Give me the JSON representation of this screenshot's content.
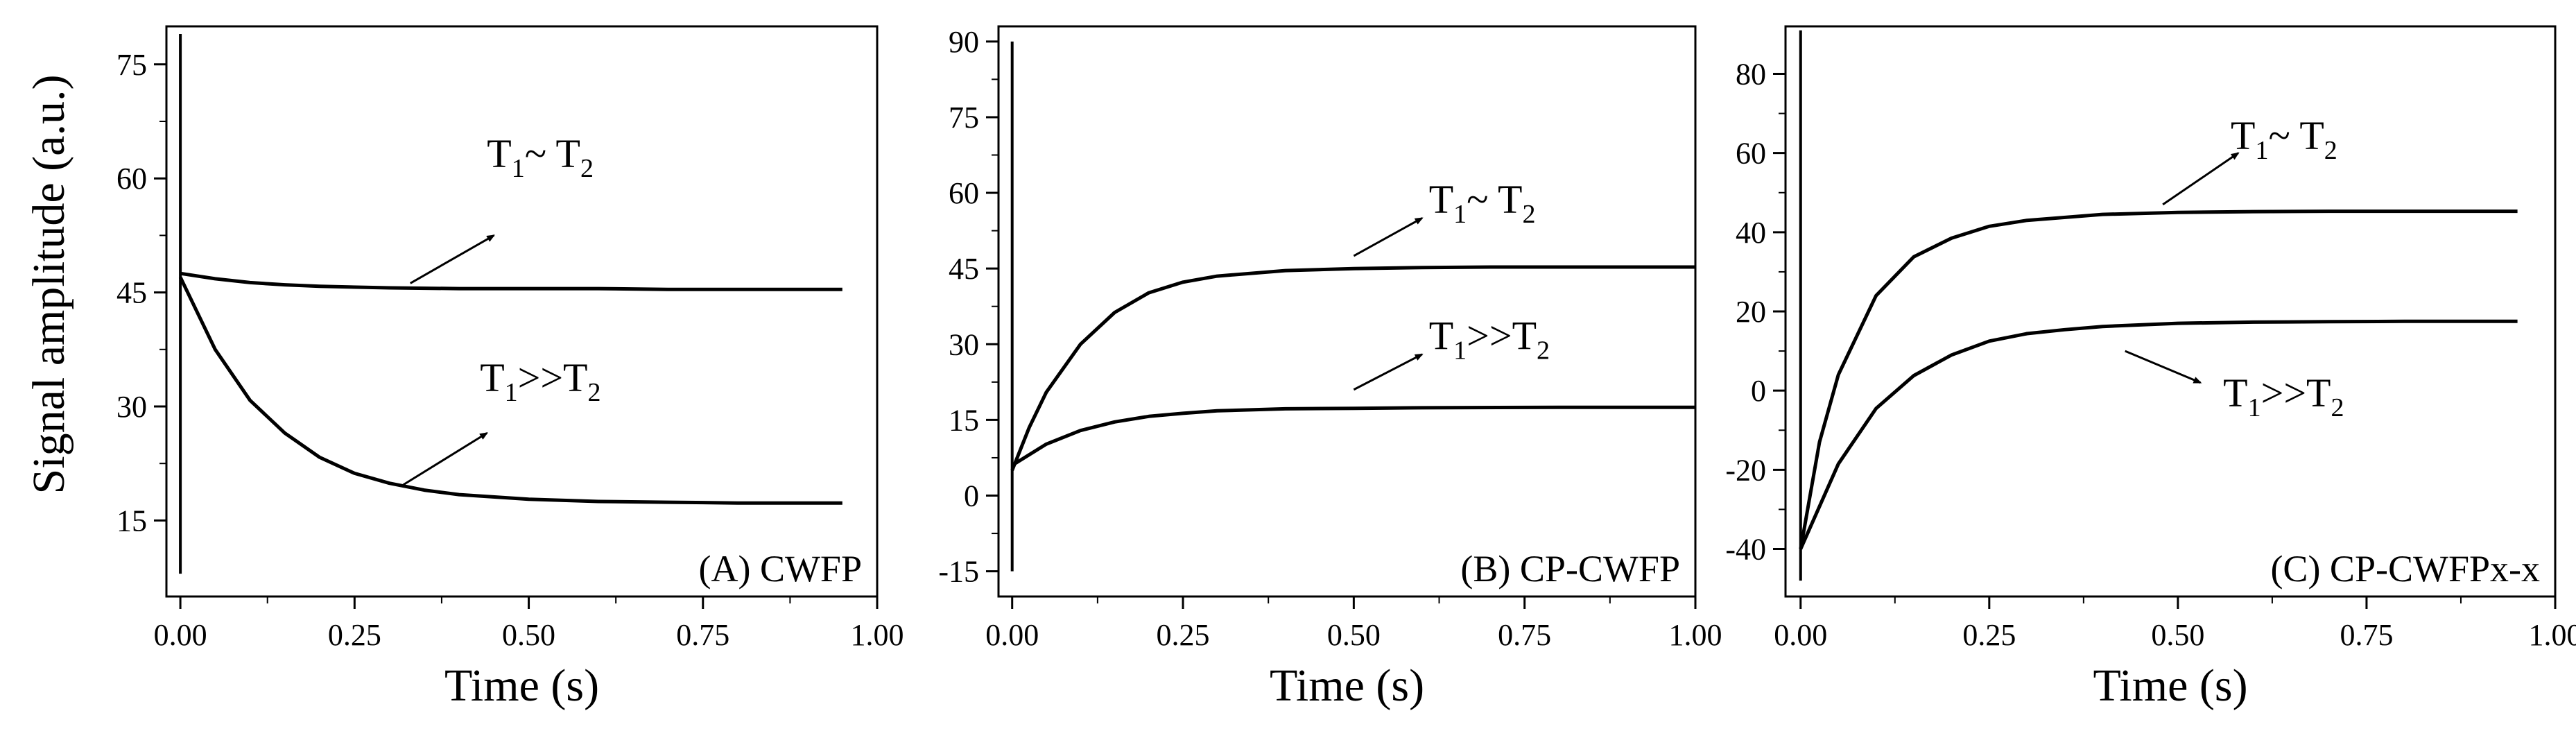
{
  "shared": {
    "ylabel": "Signal amplitude (a.u.)"
  },
  "chart_data": [
    {
      "type": "line",
      "panel_label": "(A) CWFP",
      "xlabel": "Time (s)",
      "ylabel": "Signal amplitude (a.u.)",
      "xlim": [
        -0.02,
        1.0
      ],
      "ylim": [
        5,
        80
      ],
      "xticks": [
        "0.00",
        "0.25",
        "0.50",
        "0.75",
        "1.00"
      ],
      "yticks": [
        "15",
        "30",
        "45",
        "60",
        "75"
      ],
      "ytick_values": [
        15,
        30,
        45,
        60,
        75
      ],
      "series": [
        {
          "name": "T1~T2",
          "x": [
            0,
            0.05,
            0.1,
            0.15,
            0.2,
            0.3,
            0.4,
            0.5,
            0.6,
            0.7,
            0.8,
            0.95
          ],
          "y": [
            47.5,
            46.8,
            46.3,
            46.0,
            45.8,
            45.6,
            45.5,
            45.5,
            45.5,
            45.4,
            45.4,
            45.4
          ]
        },
        {
          "name": "T1>>T2",
          "x": [
            0,
            0.05,
            0.1,
            0.15,
            0.2,
            0.25,
            0.3,
            0.35,
            0.4,
            0.5,
            0.6,
            0.7,
            0.8,
            0.95
          ],
          "y": [
            47.0,
            37.5,
            30.8,
            26.5,
            23.3,
            21.2,
            19.9,
            19.0,
            18.4,
            17.8,
            17.5,
            17.4,
            17.3,
            17.3
          ]
        }
      ],
      "spike": {
        "x": 0.0,
        "y": [
          8,
          79
        ]
      },
      "annotations": [
        {
          "base": "T",
          "sub1": "1",
          "mid": "~ T",
          "sub2": "2",
          "text_x": 0.44,
          "text_y": 61.5,
          "arrow_from": [
            0.33,
            46.2
          ],
          "arrow_to": [
            0.45,
            52.5
          ]
        },
        {
          "base": "T",
          "sub1": "1",
          "mid": ">>T",
          "sub2": "2",
          "text_x": 0.43,
          "text_y": 32.0,
          "arrow_from": [
            0.32,
            19.7
          ],
          "arrow_to": [
            0.44,
            26.5
          ]
        }
      ]
    },
    {
      "type": "line",
      "panel_label": "(B) CP-CWFP",
      "xlabel": "Time (s)",
      "ylabel": "",
      "xlim": [
        -0.02,
        1.0
      ],
      "ylim": [
        -20,
        93
      ],
      "xticks": [
        "0.00",
        "0.25",
        "0.50",
        "0.75",
        "1.00"
      ],
      "yticks": [
        "-15",
        "0",
        "15",
        "30",
        "45",
        "60",
        "75",
        "90"
      ],
      "ytick_values": [
        -15,
        0,
        15,
        30,
        45,
        60,
        75,
        90
      ],
      "series": [
        {
          "name": "T1~T2",
          "x": [
            0,
            0.025,
            0.05,
            0.1,
            0.15,
            0.2,
            0.25,
            0.3,
            0.4,
            0.5,
            0.6,
            0.7,
            0.8,
            0.9,
            1.0
          ],
          "y": [
            5,
            13.5,
            20.5,
            30.0,
            36.3,
            40.2,
            42.3,
            43.5,
            44.6,
            45.0,
            45.2,
            45.3,
            45.3,
            45.3,
            45.3
          ]
        },
        {
          "name": "T1>>T2",
          "x": [
            0,
            0.05,
            0.1,
            0.15,
            0.2,
            0.25,
            0.3,
            0.4,
            0.5,
            0.6,
            0.8,
            1.0
          ],
          "y": [
            6.0,
            10.2,
            12.9,
            14.6,
            15.7,
            16.3,
            16.8,
            17.2,
            17.3,
            17.4,
            17.5,
            17.5
          ]
        }
      ],
      "spike": {
        "x": 0.0,
        "y": [
          -15,
          90
        ]
      },
      "annotations": [
        {
          "base": "T",
          "sub1": "1",
          "mid": "~ T",
          "sub2": "2",
          "text_x": 0.61,
          "text_y": 56.0,
          "arrow_from": [
            0.5,
            47.5
          ],
          "arrow_to": [
            0.6,
            55.0
          ]
        },
        {
          "base": "T",
          "sub1": "1",
          "mid": ">>T",
          "sub2": "2",
          "text_x": 0.61,
          "text_y": 29.0,
          "arrow_from": [
            0.5,
            21.0
          ],
          "arrow_to": [
            0.6,
            28.0
          ]
        }
      ]
    },
    {
      "type": "line",
      "panel_label": "(C) CP-CWFPx-x",
      "xlabel": "Time (s)",
      "ylabel": "",
      "xlim": [
        -0.02,
        1.0
      ],
      "ylim": [
        -52,
        92
      ],
      "xticks": [
        "0.00",
        "0.25",
        "0.50",
        "0.75",
        "1.00"
      ],
      "yticks": [
        "-40",
        "-20",
        "0",
        "20",
        "40",
        "60",
        "80"
      ],
      "ytick_values": [
        -40,
        -20,
        0,
        20,
        40,
        60,
        80
      ],
      "series": [
        {
          "name": "T1~T2",
          "x": [
            0,
            0.025,
            0.05,
            0.1,
            0.15,
            0.2,
            0.25,
            0.3,
            0.4,
            0.5,
            0.6,
            0.7,
            0.8,
            0.95
          ],
          "y": [
            -40,
            -13,
            4,
            24,
            33.8,
            38.5,
            41.5,
            43.0,
            44.5,
            45.0,
            45.2,
            45.3,
            45.3,
            45.3
          ]
        },
        {
          "name": "T1>>T2",
          "x": [
            0,
            0.05,
            0.1,
            0.15,
            0.2,
            0.25,
            0.3,
            0.35,
            0.4,
            0.5,
            0.6,
            0.7,
            0.8,
            0.95
          ],
          "y": [
            -40,
            -18.5,
            -4.5,
            3.8,
            9.0,
            12.5,
            14.4,
            15.4,
            16.2,
            17.0,
            17.3,
            17.4,
            17.5,
            17.5
          ]
        }
      ],
      "spike": {
        "x": 0.0,
        "y": [
          -48,
          91
        ]
      },
      "annotations": [
        {
          "base": "T",
          "sub1": "1",
          "mid": "~ T",
          "sub2": "2",
          "text_x": 0.57,
          "text_y": 61.0,
          "arrow_from": [
            0.48,
            47.0
          ],
          "arrow_to": [
            0.58,
            60.0
          ]
        },
        {
          "base": "T",
          "sub1": "1",
          "mid": ">>T",
          "sub2": "2",
          "text_x": 0.56,
          "text_y": -4.0,
          "arrow_from": [
            0.43,
            10.0
          ],
          "arrow_to": [
            0.53,
            2.0
          ]
        }
      ]
    }
  ]
}
